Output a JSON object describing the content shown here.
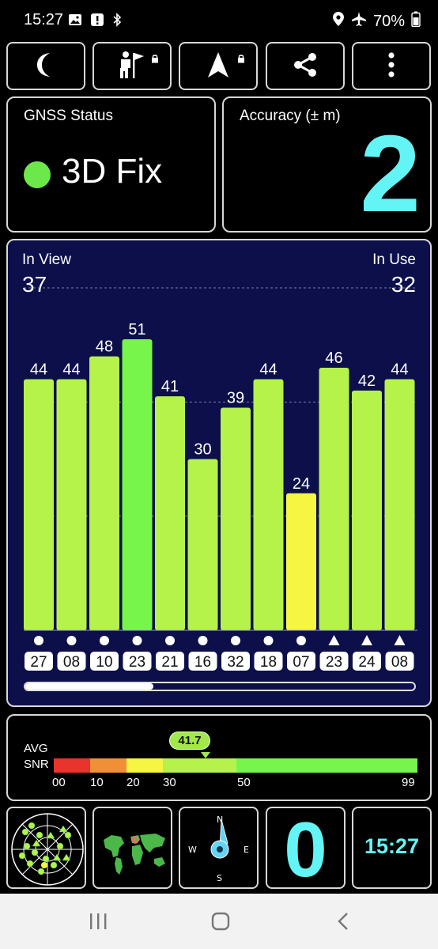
{
  "status_bar": {
    "time": "15:27",
    "battery": "70%",
    "icons": [
      "image-icon",
      "alert-icon",
      "bluetooth-icon",
      "location-icon",
      "airplane-mode-icon",
      "battery-icon"
    ]
  },
  "toolbar": {
    "buttons": [
      "night-mode-icon",
      "pedestrian-flag-icon",
      "navigation-arrow-icon",
      "share-icon",
      "more-vert-icon"
    ]
  },
  "gnss": {
    "title": "GNSS Status",
    "fix": "3D Fix",
    "fix_color": "#6de84a"
  },
  "accuracy": {
    "title": "Accuracy (± m)",
    "value": "2",
    "color": "#63f5f5"
  },
  "satellites": {
    "in_view_label": "In View",
    "in_view": "37",
    "in_use_label": "In Use",
    "in_use": "32",
    "scroll_fraction": 0.33
  },
  "chart_data": {
    "type": "bar",
    "categories": [
      "27",
      "08",
      "10",
      "23",
      "21",
      "16",
      "32",
      "18",
      "07",
      "23",
      "24",
      "08"
    ],
    "values": [
      44,
      44,
      48,
      51,
      41,
      30,
      39,
      44,
      24,
      46,
      42,
      44
    ],
    "markers": [
      "circle",
      "circle",
      "circle",
      "circle",
      "circle",
      "circle",
      "circle",
      "circle",
      "circle",
      "triangle",
      "triangle",
      "triangle"
    ],
    "colors": [
      "#b5f24a",
      "#b5f24a",
      "#b5f24a",
      "#77f54a",
      "#b5f24a",
      "#b5f24a",
      "#b5f24a",
      "#b5f24a",
      "#f5f542",
      "#b5f24a",
      "#b5f24a",
      "#b5f24a"
    ],
    "ylim": [
      0,
      60
    ],
    "grid": true
  },
  "avg_snr": {
    "label_line1": "AVG",
    "label_line2": "SNR",
    "value": "41.7",
    "value_num": 41.7,
    "ticks": [
      "00",
      "10",
      "20",
      "30",
      "50",
      "99"
    ],
    "colors": [
      "#e8342c",
      "#f09035",
      "#f5f542",
      "#b5f24a",
      "#77f54a"
    ]
  },
  "tiles": {
    "sats_used": "0",
    "clock": "15:27",
    "compass": {
      "n": "N",
      "e": "E",
      "s": "S",
      "w": "W"
    }
  }
}
